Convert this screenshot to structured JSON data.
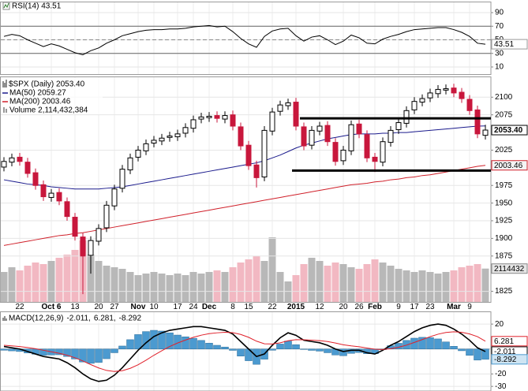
{
  "chart_data": [
    {
      "type": "line",
      "title": "RSI(14) 43.51",
      "color": "#000000",
      "last_label": "43.51",
      "values": [
        55,
        58,
        56,
        50,
        45,
        40,
        44,
        41,
        36,
        31,
        28,
        34,
        38,
        45,
        50,
        56,
        59,
        62,
        64,
        65,
        65,
        66,
        66,
        67,
        69,
        70,
        71,
        69,
        70,
        62,
        52,
        44,
        39,
        55,
        63,
        66,
        67,
        56,
        48,
        54,
        56,
        50,
        43,
        48,
        57,
        53,
        45,
        44,
        51,
        55,
        58,
        62,
        65,
        66,
        67,
        68,
        68,
        65,
        61,
        55,
        45,
        43.51
      ],
      "ylim": [
        0,
        100
      ],
      "yticks": [
        10,
        30,
        50,
        70,
        90
      ],
      "reference_lines": [
        {
          "value": 70,
          "dashed": false
        },
        {
          "value": 50,
          "dashed": true
        },
        {
          "value": 30,
          "dashed": false
        }
      ]
    },
    {
      "type": "candlestick",
      "title": "$SPX (Daily) 2053.40",
      "last_label": "2053.40",
      "up_color": "#000000",
      "down_color": "#c8173c",
      "grid": true,
      "categories": [
        null,
        null,
        "22",
        null,
        null,
        null,
        "Oct 6",
        null,
        null,
        "13",
        null,
        null,
        "20",
        null,
        "27",
        null,
        null,
        "Nov",
        null,
        "10",
        null,
        null,
        "17",
        null,
        "24",
        null,
        "Dec",
        null,
        null,
        "8",
        null,
        "15",
        null,
        null,
        "22",
        null,
        null,
        "2015",
        null,
        null,
        "12",
        null,
        null,
        "20",
        null,
        "26",
        null,
        "Feb",
        null,
        null,
        "9",
        null,
        "17",
        null,
        "23",
        null,
        null,
        "Mar",
        null,
        "9",
        null,
        null
      ],
      "open": [
        2001,
        2008,
        2015,
        2008,
        1993,
        1976,
        1958,
        1965,
        1952,
        1930,
        1902,
        1876,
        1896,
        1915,
        1946,
        1971,
        1997,
        2015,
        2024,
        2035,
        2038,
        2043,
        2044,
        2049,
        2056,
        2069,
        2071,
        2074,
        2069,
        2075,
        2058,
        2032,
        2004,
        1987,
        2052,
        2080,
        2088,
        2093,
        2058,
        2032,
        2052,
        2060,
        2036,
        2010,
        2024,
        2062,
        2047,
        2015,
        2008,
        2036,
        2054,
        2063,
        2082,
        2093,
        2099,
        2105,
        2110,
        2113,
        2107,
        2097,
        2082,
        2046
      ],
      "high": [
        2015,
        2020,
        2021,
        2014,
        1999,
        1982,
        1970,
        1971,
        1958,
        1936,
        1908,
        1903,
        1920,
        1953,
        1976,
        2004,
        2020,
        2031,
        2040,
        2045,
        2048,
        2051,
        2054,
        2063,
        2074,
        2078,
        2079,
        2080,
        2080,
        2081,
        2064,
        2038,
        2010,
        2059,
        2085,
        2095,
        2098,
        2099,
        2064,
        2059,
        2065,
        2066,
        2042,
        2031,
        2067,
        2068,
        2053,
        2021,
        2043,
        2059,
        2070,
        2087,
        2100,
        2104,
        2112,
        2117,
        2118,
        2119,
        2113,
        2103,
        2088,
        2061
      ],
      "low": [
        1995,
        2002,
        2003,
        1986,
        1969,
        1953,
        1952,
        1947,
        1925,
        1897,
        1821,
        1850,
        1890,
        1909,
        1940,
        1965,
        1991,
        2009,
        2018,
        2029,
        2032,
        2037,
        2038,
        2043,
        2050,
        2063,
        2065,
        2064,
        2063,
        2053,
        2025,
        1997,
        1972,
        1981,
        2046,
        2074,
        2082,
        2053,
        2025,
        2026,
        2046,
        2031,
        2003,
        2004,
        2018,
        2042,
        2008,
        1994,
        2002,
        2030,
        2048,
        2057,
        2076,
        2087,
        2093,
        2099,
        2104,
        2100,
        2092,
        2075,
        2042,
        2040
      ],
      "close": [
        2009,
        2014,
        2009,
        1992,
        1975,
        1959,
        1964,
        1953,
        1931,
        1903,
        1875,
        1897,
        1914,
        1947,
        1970,
        1998,
        2014,
        2025,
        2034,
        2039,
        2042,
        2045,
        2048,
        2057,
        2068,
        2072,
        2073,
        2070,
        2074,
        2059,
        2031,
        2003,
        1986,
        2053,
        2079,
        2089,
        2092,
        2059,
        2031,
        2053,
        2059,
        2037,
        2009,
        2025,
        2061,
        2048,
        2014,
        2009,
        2037,
        2053,
        2064,
        2081,
        2094,
        2098,
        2106,
        2111,
        2112,
        2106,
        2098,
        2081,
        2048,
        2053.4
      ],
      "ylim": [
        1810,
        2126
      ],
      "yticks": [
        1825,
        1875,
        1900,
        1925,
        1950,
        1975,
        2025,
        2075,
        2100
      ],
      "series": [
        {
          "name": "MA(50) 2059.27",
          "color": "#1a1a8c",
          "values": [
            1983,
            1981,
            1979,
            1977,
            1976,
            1975,
            1973,
            1972,
            1971,
            1970,
            1970,
            1970,
            1970,
            1971,
            1972,
            1973,
            1975,
            1977,
            1979,
            1981,
            1983,
            1985,
            1987,
            1989,
            1991,
            1993,
            1995,
            1997,
            1999,
            2001,
            2003,
            2005,
            2007,
            2010,
            2014,
            2018,
            2023,
            2028,
            2032,
            2035,
            2038,
            2041,
            2043,
            2045,
            2047,
            2048,
            2048,
            2048,
            2049,
            2049,
            2050,
            2050,
            2051,
            2052,
            2053,
            2054,
            2055,
            2056,
            2057,
            2058,
            2059,
            2059.27
          ]
        },
        {
          "name": "MA(200) 2003.46",
          "color": "#d0202a",
          "last_label": "2003.46",
          "values": [
            1890,
            1892,
            1894,
            1896,
            1898,
            1900,
            1902,
            1904,
            1905,
            1907,
            1908,
            1910,
            1912,
            1914,
            1916,
            1918,
            1920,
            1922,
            1924,
            1926,
            1928,
            1930,
            1932,
            1934,
            1936,
            1938,
            1940,
            1942,
            1944,
            1946,
            1948,
            1950,
            1952,
            1954,
            1956,
            1958,
            1960,
            1962,
            1964,
            1966,
            1968,
            1970,
            1972,
            1974,
            1976,
            1977,
            1978,
            1980,
            1981,
            1983,
            1984,
            1986,
            1987,
            1989,
            1990,
            1992,
            1994,
            1996,
            1998,
            2000,
            2002,
            2003.46
          ]
        }
      ],
      "volume": {
        "name": "Volume 2,114,432,384",
        "last_label": "2114432",
        "up_color": "#b8b8b8",
        "down_color": "#f2b8c2",
        "vlim": [
          0,
          5000000000.0
        ],
        "values": [
          1900000000.0,
          2200000000.0,
          2000000000.0,
          2300000000.0,
          2500000000.0,
          2400000000.0,
          2600000000.0,
          2800000000.0,
          3000000000.0,
          3300000000.0,
          3900000000.0,
          3000000000.0,
          2600000000.0,
          2300000000.0,
          2200000000.0,
          2100000000.0,
          1900000000.0,
          1700000000.0,
          1800000000.0,
          1900000000.0,
          1800000000.0,
          1700000000.0,
          1800000000.0,
          1700000000.0,
          1900000000.0,
          1800000000.0,
          1900000000.0,
          2000000000.0,
          1900000000.0,
          2200000000.0,
          2500000000.0,
          2700000000.0,
          2900000000.0,
          2600000000.0,
          4100000000.0,
          1900000000.0,
          1300000000.0,
          1700000000.0,
          2400000000.0,
          2800000000.0,
          2600000000.0,
          2300000000.0,
          2500000000.0,
          2400000000.0,
          2200000000.0,
          2100000000.0,
          2400000000.0,
          2700000000.0,
          2500000000.0,
          2300000000.0,
          2100000000.0,
          2000000000.0,
          1900000000.0,
          2000000000.0,
          1900000000.0,
          1800000000.0,
          1900000000.0,
          2000000000.0,
          2200000000.0,
          2300000000.0,
          2400000000.0,
          2114432384
        ]
      },
      "levels": [
        {
          "value": 2070,
          "start": 38
        },
        {
          "value": 1996,
          "start": 37
        }
      ]
    },
    {
      "type": "macd",
      "title": "MACD(12,26,9)",
      "ylim": [
        -33.7,
        30.2
      ],
      "yticks": [
        -30,
        -20,
        20
      ],
      "series": [
        {
          "name": "-2.011,",
          "kind": "line",
          "color": "#000000",
          "last_label": "-2.011",
          "values": [
            2,
            1,
            0,
            -2,
            -4,
            -6,
            -7,
            -8,
            -11,
            -15,
            -20,
            -24,
            -26,
            -25,
            -21,
            -15,
            -8,
            -1,
            5,
            10,
            13,
            15,
            16,
            17,
            18,
            18,
            17,
            16,
            15,
            12,
            6,
            0,
            -6,
            -4,
            3,
            9,
            13,
            11,
            7,
            6,
            5,
            3,
            0,
            -2,
            -1,
            -1,
            -3,
            -4,
            -1,
            3,
            6,
            10,
            14,
            17,
            19,
            20,
            19,
            16,
            12,
            7,
            1,
            -2.011
          ]
        },
        {
          "name": "6.281,",
          "kind": "line",
          "color": "#e0202a",
          "last_label": "6.281",
          "values": [
            3,
            2.5,
            2,
            1.2,
            0.2,
            -1,
            -2.2,
            -3.4,
            -5,
            -7,
            -9.6,
            -12.5,
            -15.2,
            -17.2,
            -18,
            -17.4,
            -15.5,
            -12.6,
            -9,
            -5,
            -1.4,
            2,
            4.8,
            7.2,
            9.4,
            11.1,
            12.3,
            13,
            13.4,
            13.1,
            11.7,
            9.4,
            6.3,
            4.2,
            4,
            5,
            6.6,
            7.5,
            7.4,
            7.1,
            6.7,
            6,
            4.8,
            3.4,
            2.5,
            1.8,
            0.8,
            -0.2,
            -0.4,
            0.3,
            1.4,
            3.1,
            5.3,
            7.6,
            9.9,
            11.9,
            13.3,
            13.8,
            13.4,
            12.1,
            9.9,
            6.281
          ]
        },
        {
          "name": "-8.292",
          "kind": "histogram",
          "color": "#4b9ad0",
          "last_label": "-8.292",
          "values": [
            -1,
            -1.5,
            -2,
            -3.2,
            -4.2,
            -5,
            -4.8,
            -4.6,
            -6,
            -8,
            -10.4,
            -11.5,
            -10.8,
            -7.8,
            -3,
            2.4,
            7.5,
            11.6,
            14,
            15,
            14.4,
            13,
            11.2,
            9.8,
            8.6,
            6.9,
            4.7,
            3,
            1.6,
            -1.1,
            -5.7,
            -9.4,
            -12.3,
            -8.2,
            -1,
            4,
            6.4,
            3.5,
            -0.4,
            -1.1,
            -1.7,
            -3,
            -4.8,
            -5.4,
            -3.5,
            -2.8,
            -3.8,
            -3.8,
            -0.6,
            2.7,
            4.6,
            6.9,
            8.7,
            9.4,
            9.1,
            8.1,
            5.7,
            2.2,
            -1.4,
            -5.1,
            -8.9,
            -8.292
          ]
        }
      ]
    }
  ]
}
